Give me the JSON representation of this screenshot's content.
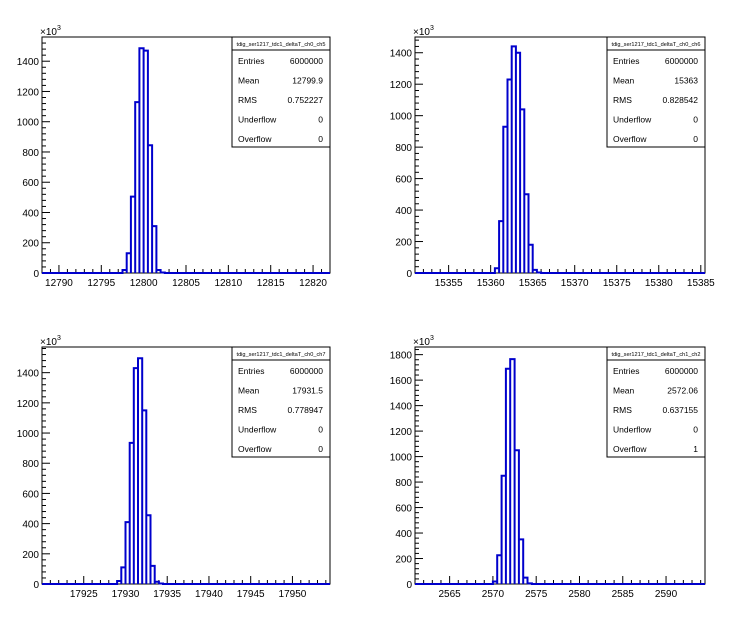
{
  "chart_data": [
    {
      "type": "bar",
      "title": "tdig_ser1217_tdc1_deltaT_ch0_ch5",
      "exponent_label": "×10",
      "exponent": "3",
      "xlim": [
        12788,
        12822
      ],
      "ylim": [
        0,
        1560
      ],
      "xticks": [
        "12790",
        "12795",
        "12800",
        "12805",
        "12810",
        "12815",
        "12820"
      ],
      "yticks": [
        "0",
        "200",
        "400",
        "600",
        "800",
        "1000",
        "1200",
        "1400"
      ],
      "bin_width": 0.5,
      "bins": [
        {
          "x": 12797.5,
          "value": 20
        },
        {
          "x": 12798.0,
          "value": 130
        },
        {
          "x": 12798.5,
          "value": 505
        },
        {
          "x": 12799.0,
          "value": 1130
        },
        {
          "x": 12799.5,
          "value": 1485
        },
        {
          "x": 12800.0,
          "value": 1470
        },
        {
          "x": 12800.5,
          "value": 845
        },
        {
          "x": 12801.0,
          "value": 310
        },
        {
          "x": 12801.5,
          "value": 20
        },
        {
          "x": 12802.0,
          "value": 3
        }
      ],
      "stats": [
        {
          "label": "Entries",
          "value": "6000000"
        },
        {
          "label": "Mean",
          "value": "12799.9"
        },
        {
          "label": "RMS",
          "value": "0.752227"
        },
        {
          "label": "Underflow",
          "value": "0"
        },
        {
          "label": "Overflow",
          "value": "0"
        }
      ]
    },
    {
      "type": "bar",
      "title": "tdig_ser1217_tdc1_deltaT_ch0_ch6",
      "exponent_label": "×10",
      "exponent": "3",
      "xlim": [
        15351,
        15385.5
      ],
      "ylim": [
        0,
        1500
      ],
      "xticks": [
        "15355",
        "15360",
        "15365",
        "15370",
        "15375",
        "15380",
        "15385"
      ],
      "yticks": [
        "0",
        "200",
        "400",
        "600",
        "800",
        "1000",
        "1200",
        "1400"
      ],
      "bin_width": 0.5,
      "bins": [
        {
          "x": 15360.5,
          "value": 30
        },
        {
          "x": 15361.0,
          "value": 330
        },
        {
          "x": 15361.5,
          "value": 930
        },
        {
          "x": 15362.0,
          "value": 1230
        },
        {
          "x": 15362.5,
          "value": 1440
        },
        {
          "x": 15363.0,
          "value": 1400
        },
        {
          "x": 15363.5,
          "value": 1040
        },
        {
          "x": 15364.0,
          "value": 500
        },
        {
          "x": 15364.5,
          "value": 180
        },
        {
          "x": 15365.0,
          "value": 20
        },
        {
          "x": 15365.5,
          "value": 3
        }
      ],
      "stats": [
        {
          "label": "Entries",
          "value": "6000000"
        },
        {
          "label": "Mean",
          "value": "15363"
        },
        {
          "label": "RMS",
          "value": "0.828542"
        },
        {
          "label": "Underflow",
          "value": "0"
        },
        {
          "label": "Overflow",
          "value": "0"
        }
      ]
    },
    {
      "type": "bar",
      "title": "tdig_ser1217_tdc1_deltaT_ch0_ch7",
      "exponent_label": "×10",
      "exponent": "3",
      "xlim": [
        17920,
        17954.5
      ],
      "ylim": [
        0,
        1570
      ],
      "xticks": [
        "17925",
        "17930",
        "17935",
        "17940",
        "17945",
        "17950"
      ],
      "yticks": [
        "0",
        "200",
        "400",
        "600",
        "800",
        "1000",
        "1200",
        "1400"
      ],
      "bin_width": 0.5,
      "bins": [
        {
          "x": 17929.0,
          "value": 20
        },
        {
          "x": 17929.5,
          "value": 110
        },
        {
          "x": 17930.0,
          "value": 410
        },
        {
          "x": 17930.5,
          "value": 935
        },
        {
          "x": 17931.0,
          "value": 1430
        },
        {
          "x": 17931.5,
          "value": 1495
        },
        {
          "x": 17932.0,
          "value": 1150
        },
        {
          "x": 17932.5,
          "value": 455
        },
        {
          "x": 17933.0,
          "value": 120
        },
        {
          "x": 17933.5,
          "value": 15
        },
        {
          "x": 17934.0,
          "value": 3
        }
      ],
      "stats": [
        {
          "label": "Entries",
          "value": "6000000"
        },
        {
          "label": "Mean",
          "value": "17931.5"
        },
        {
          "label": "RMS",
          "value": "0.778947"
        },
        {
          "label": "Underflow",
          "value": "0"
        },
        {
          "label": "Overflow",
          "value": "0"
        }
      ]
    },
    {
      "type": "bar",
      "title": "tdig_ser1217_tdc1_deltaT_ch1_ch2",
      "exponent_label": "×10",
      "exponent": "3",
      "xlim": [
        2561,
        2594.5
      ],
      "ylim": [
        0,
        1860
      ],
      "xticks": [
        "2565",
        "2570",
        "2575",
        "2580",
        "2585",
        "2590"
      ],
      "yticks": [
        "0",
        "200",
        "400",
        "600",
        "800",
        "1000",
        "1200",
        "1400",
        "1600",
        "1800"
      ],
      "bin_width": 0.5,
      "bins": [
        {
          "x": 2570.0,
          "value": 20
        },
        {
          "x": 2570.5,
          "value": 225
        },
        {
          "x": 2571.0,
          "value": 850
        },
        {
          "x": 2571.5,
          "value": 1690
        },
        {
          "x": 2572.0,
          "value": 1765
        },
        {
          "x": 2572.5,
          "value": 1050
        },
        {
          "x": 2573.0,
          "value": 350
        },
        {
          "x": 2573.5,
          "value": 50
        },
        {
          "x": 2574.0,
          "value": 5
        }
      ],
      "stats": [
        {
          "label": "Entries",
          "value": "6000000"
        },
        {
          "label": "Mean",
          "value": "2572.06"
        },
        {
          "label": "RMS",
          "value": "0.637155"
        },
        {
          "label": "Underflow",
          "value": "0"
        },
        {
          "label": "Overflow",
          "value": "1"
        }
      ]
    }
  ]
}
